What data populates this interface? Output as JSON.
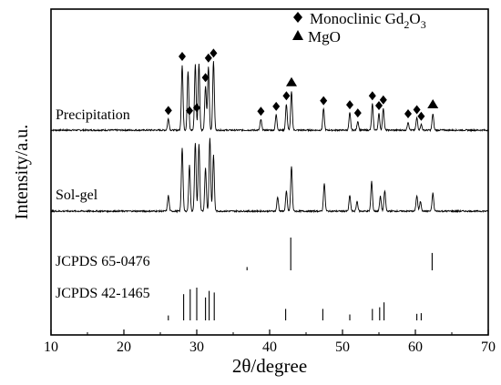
{
  "chart_data": {
    "type": "line",
    "title": "",
    "xlabel": "2θ/degree",
    "ylabel": "Intensity/a.u.",
    "xlim": [
      10,
      70
    ],
    "xticks": [
      10,
      20,
      30,
      40,
      50,
      60,
      70
    ],
    "y_ticks_shown": false,
    "grid": false,
    "legend": {
      "placement": "top-right",
      "entries": [
        {
          "marker": "diamond",
          "label_prefix": "Monoclinic Gd",
          "sub1": "2",
          "mid": "O",
          "sub2": "3"
        },
        {
          "marker": "triangle",
          "label": "MgO"
        }
      ]
    },
    "series": [
      {
        "name": "Precipitation",
        "kind": "xrd-pattern",
        "peaks_2theta": [
          26.1,
          28.0,
          28.8,
          29.8,
          30.3,
          31.2,
          31.6,
          32.3,
          38.8,
          40.9,
          42.3,
          43.0,
          47.4,
          51.0,
          52.1,
          54.1,
          55.0,
          55.6,
          59.0,
          60.2,
          60.8,
          62.4
        ],
        "peak_height": [
          0.14,
          0.8,
          0.72,
          0.8,
          0.82,
          0.54,
          0.78,
          0.84,
          0.13,
          0.19,
          0.32,
          0.47,
          0.26,
          0.21,
          0.11,
          0.32,
          0.2,
          0.27,
          0.1,
          0.15,
          0.07,
          0.2
        ],
        "diamond_markers_2theta": [
          26.1,
          28.0,
          29.0,
          30.0,
          31.2,
          31.6,
          32.3,
          38.8,
          40.9,
          42.3,
          47.4,
          51.0,
          52.1,
          54.1,
          55.0,
          55.6,
          59.0,
          60.2,
          60.8
        ],
        "triangle_markers_2theta": [
          43.0,
          62.4
        ]
      },
      {
        "name": "Sol-gel",
        "kind": "xrd-pattern",
        "peaks_2theta": [
          26.1,
          28.0,
          29.0,
          29.8,
          30.3,
          31.2,
          31.8,
          32.3,
          41.1,
          42.3,
          43.0,
          47.5,
          51.0,
          52.0,
          54.0,
          55.2,
          55.8,
          60.2,
          60.7,
          62.4
        ],
        "peak_height": [
          0.19,
          0.78,
          0.56,
          0.84,
          0.82,
          0.53,
          0.9,
          0.68,
          0.17,
          0.24,
          0.55,
          0.34,
          0.19,
          0.12,
          0.36,
          0.18,
          0.25,
          0.19,
          0.12,
          0.22
        ]
      },
      {
        "name": "JCPDS 65-0476",
        "kind": "stick-pattern",
        "sticks_2theta": [
          36.9,
          42.9,
          62.3
        ],
        "sticks_intensity": [
          0.1,
          1.0,
          0.53
        ]
      },
      {
        "name": "JCPDS 42-1465",
        "kind": "stick-pattern",
        "sticks_2theta": [
          26.1,
          28.2,
          29.1,
          30.0,
          31.2,
          31.7,
          32.4,
          42.2,
          47.3,
          51.0,
          54.1,
          55.1,
          55.7,
          60.2,
          60.8
        ],
        "sticks_intensity": [
          0.15,
          0.8,
          0.95,
          1.0,
          0.7,
          0.9,
          0.85,
          0.35,
          0.35,
          0.18,
          0.35,
          0.4,
          0.55,
          0.2,
          0.22
        ]
      }
    ]
  }
}
